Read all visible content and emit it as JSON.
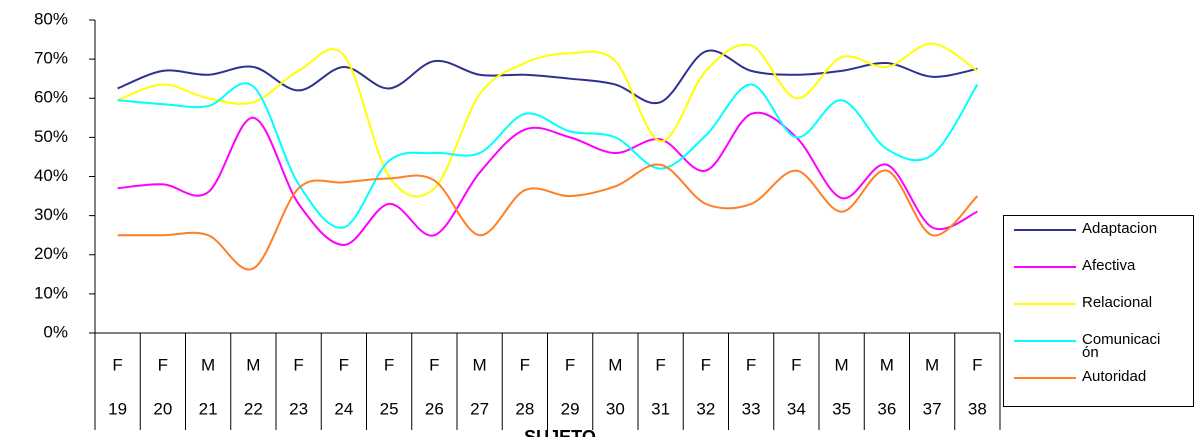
{
  "chart_data": {
    "type": "line",
    "x_label": "SUJETO",
    "categories": [
      "19",
      "20",
      "21",
      "22",
      "23",
      "24",
      "25",
      "26",
      "27",
      "28",
      "29",
      "30",
      "31",
      "32",
      "33",
      "34",
      "35",
      "36",
      "37",
      "38"
    ],
    "category_groups": [
      "F",
      "F",
      "M",
      "M",
      "F",
      "F",
      "F",
      "F",
      "M",
      "F",
      "F",
      "M",
      "F",
      "F",
      "F",
      "F",
      "M",
      "M",
      "M",
      "F"
    ],
    "ylim": [
      0,
      80
    ],
    "yticks": [
      {
        "value": 0,
        "label": "0%"
      },
      {
        "value": 10,
        "label": "10%"
      },
      {
        "value": 20,
        "label": "20%"
      },
      {
        "value": 30,
        "label": "30%"
      },
      {
        "value": 40,
        "label": "40%"
      },
      {
        "value": 50,
        "label": "50%"
      },
      {
        "value": 60,
        "label": "60%"
      },
      {
        "value": 70,
        "label": "70%"
      },
      {
        "value": 80,
        "label": "80%"
      }
    ],
    "smooth": true,
    "legend": "right",
    "series": [
      {
        "name": "Adaptacion",
        "color": "#2e3192",
        "values": [
          62.5,
          67,
          66,
          68,
          62,
          68,
          62.5,
          69.5,
          66,
          66,
          65,
          63.5,
          59,
          72,
          67,
          66,
          67,
          69,
          65.5,
          67.5
        ]
      },
      {
        "name": "Afectiva",
        "color": "#ff00ff",
        "values": [
          37,
          38,
          36,
          55,
          33,
          22.5,
          33,
          25,
          41,
          52,
          50,
          46,
          49.5,
          41.5,
          56,
          50,
          34.5,
          43,
          27,
          31
        ]
      },
      {
        "name": "Relacional",
        "color": "#ffff00",
        "values": [
          59.5,
          63.5,
          60,
          59,
          67,
          71,
          40,
          37,
          61,
          69,
          71.5,
          69.5,
          49,
          67,
          73.5,
          60,
          70.5,
          68,
          74,
          67
        ]
      },
      {
        "name": "Comunicación",
        "color": "#00ffff",
        "values": [
          59.5,
          58.5,
          58,
          63,
          38,
          27,
          44,
          46,
          46,
          56,
          51.5,
          50,
          42,
          50.5,
          63.5,
          50,
          59.5,
          47,
          45.5,
          63.5
        ]
      },
      {
        "name": "Autoridad",
        "color": "#ff7f27",
        "values": [
          25,
          25,
          25,
          16.5,
          37,
          38.5,
          39.5,
          39,
          25,
          36.5,
          35,
          37.5,
          43,
          33,
          33,
          41.5,
          31,
          41.5,
          25,
          35
        ]
      }
    ]
  }
}
